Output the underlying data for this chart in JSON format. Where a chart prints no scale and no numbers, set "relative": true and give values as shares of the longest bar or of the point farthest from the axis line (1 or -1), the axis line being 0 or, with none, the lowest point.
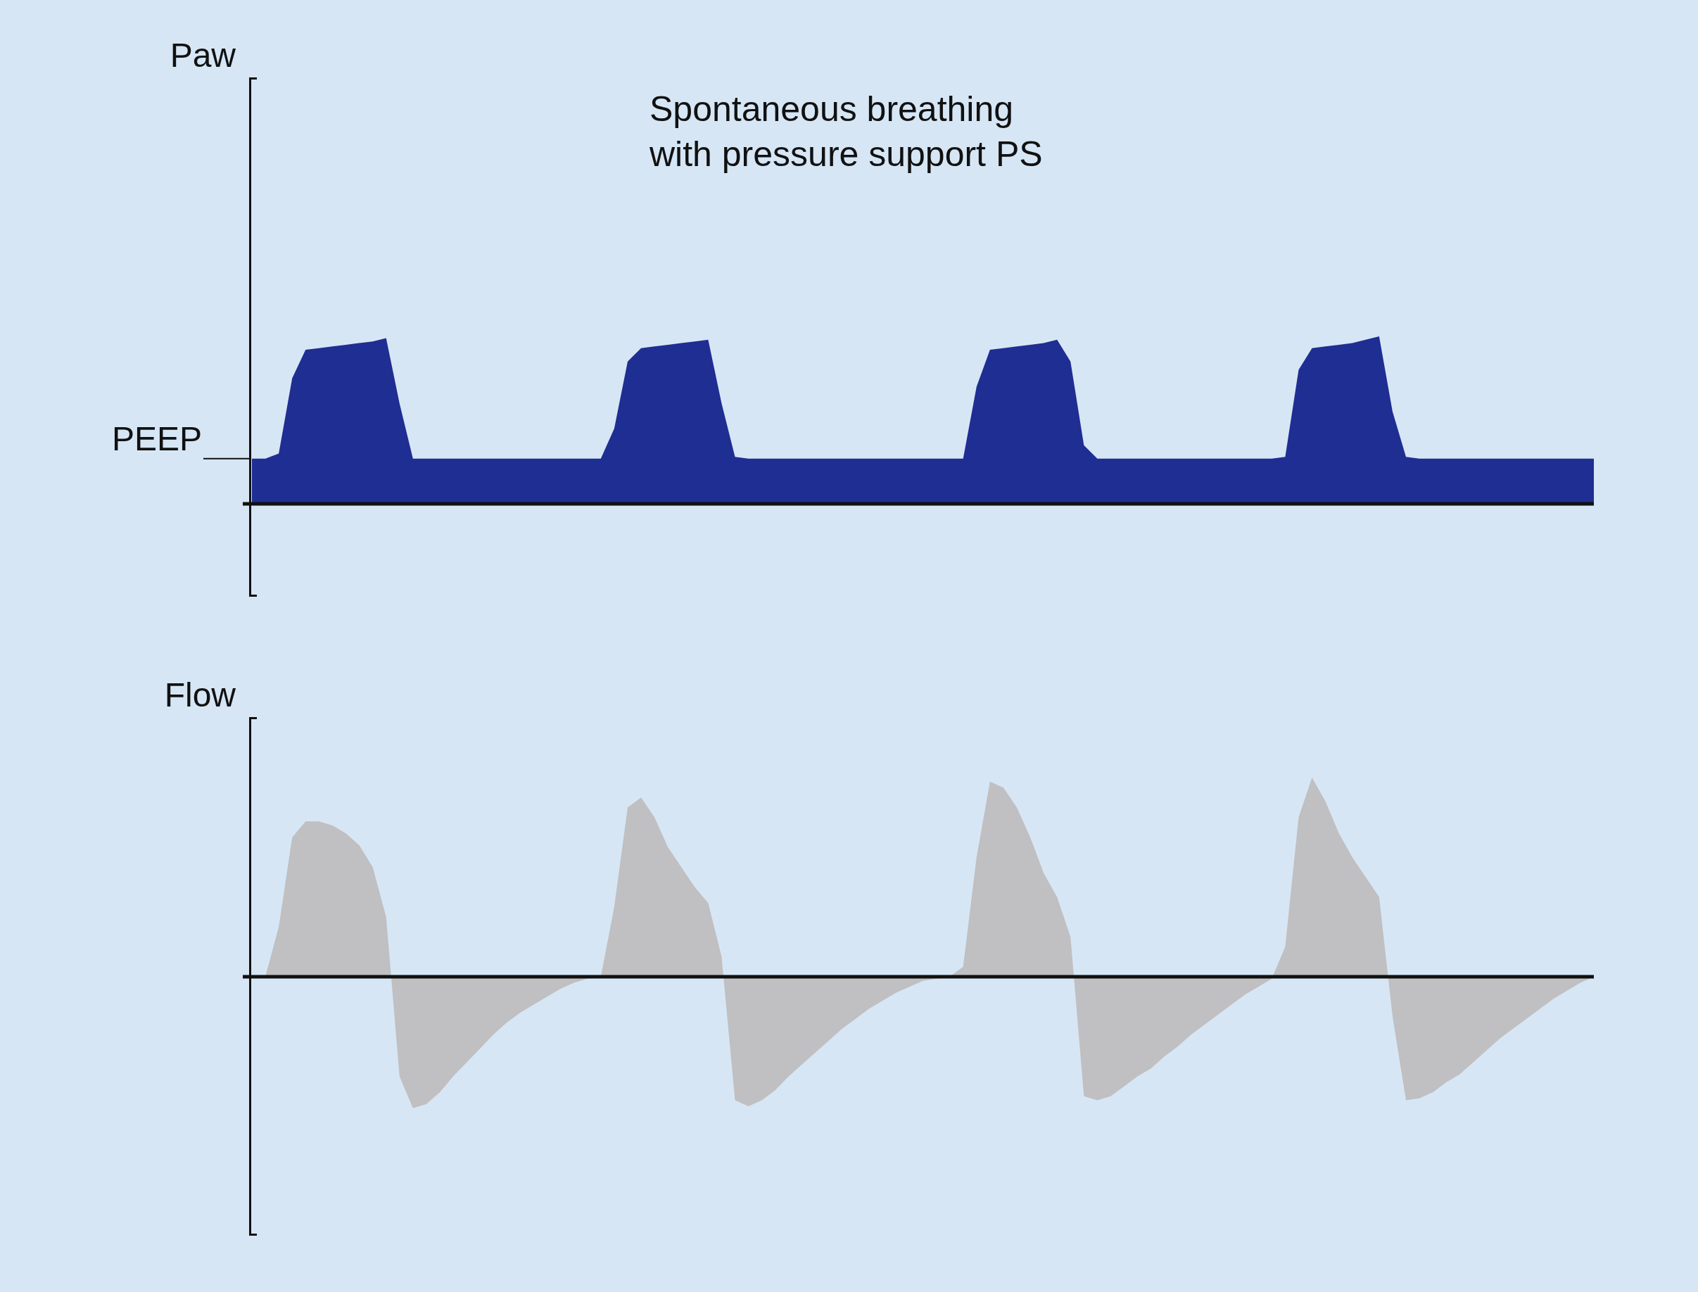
{
  "chart_data": [
    {
      "type": "area",
      "relative": true,
      "title": "Spontaneous breathing\nwith pressure support PS",
      "ylabel": "Paw",
      "ref_lines": [
        {
          "axis": "y",
          "value": 0.27,
          "label": "PEEP"
        }
      ],
      "categories": [
        null,
        null,
        null,
        null,
        null,
        null,
        null,
        null,
        null,
        null,
        null,
        null,
        null,
        null,
        null,
        null,
        null,
        null,
        null,
        null,
        null,
        null,
        null,
        null,
        null,
        null,
        null,
        null,
        null,
        null,
        null,
        null,
        null,
        null,
        null,
        null,
        null,
        null,
        null,
        null,
        null,
        null,
        null,
        null,
        null,
        null,
        null,
        null,
        null,
        null,
        null,
        null,
        null,
        null,
        null,
        null,
        null,
        null,
        null,
        null,
        null,
        null,
        null,
        null,
        null,
        null,
        null,
        null,
        null,
        null,
        null,
        null,
        null,
        null,
        null,
        null,
        null,
        null,
        null,
        null,
        null,
        null,
        null,
        null,
        null,
        null,
        null,
        null,
        null,
        null,
        null,
        null,
        null,
        null,
        null,
        null,
        null,
        null,
        null,
        null,
        null
      ],
      "series": [
        {
          "color": "#1f2e92",
          "values": [
            0.27,
            0.27,
            0.3,
            0.75,
            0.92,
            0.93,
            0.94,
            0.95,
            0.96,
            0.97,
            0.99,
            0.6,
            0.27,
            0.27,
            0.27,
            0.27,
            0.27,
            0.27,
            0.27,
            0.27,
            0.27,
            0.27,
            0.27,
            0.27,
            0.27,
            0.27,
            0.27,
            0.45,
            0.85,
            0.93,
            0.94,
            0.95,
            0.96,
            0.97,
            0.98,
            0.6,
            0.28,
            0.27,
            0.27,
            0.27,
            0.27,
            0.27,
            0.27,
            0.27,
            0.27,
            0.27,
            0.27,
            0.27,
            0.27,
            0.27,
            0.27,
            0.27,
            0.27,
            0.27,
            0.7,
            0.92,
            0.93,
            0.94,
            0.95,
            0.96,
            0.98,
            0.85,
            0.35,
            0.27,
            0.27,
            0.27,
            0.27,
            0.27,
            0.27,
            0.27,
            0.27,
            0.27,
            0.27,
            0.27,
            0.27,
            0.27,
            0.27,
            0.28,
            0.8,
            0.93,
            0.94,
            0.95,
            0.96,
            0.98,
            1.0,
            0.55,
            0.28,
            0.27,
            0.27,
            0.27,
            0.27,
            0.27,
            0.27,
            0.27,
            0.27,
            0.27,
            0.27,
            0.27,
            0.27,
            0.27,
            0.27
          ]
        }
      ]
    },
    {
      "type": "area",
      "relative": true,
      "ylabel": "Flow",
      "categories": [
        null,
        null,
        null,
        null,
        null,
        null,
        null,
        null,
        null,
        null,
        null,
        null,
        null,
        null,
        null,
        null,
        null,
        null,
        null,
        null,
        null,
        null,
        null,
        null,
        null,
        null,
        null,
        null,
        null,
        null,
        null,
        null,
        null,
        null,
        null,
        null,
        null,
        null,
        null,
        null,
        null,
        null,
        null,
        null,
        null,
        null,
        null,
        null,
        null,
        null,
        null,
        null,
        null,
        null,
        null,
        null,
        null,
        null,
        null,
        null,
        null,
        null,
        null,
        null,
        null,
        null,
        null,
        null,
        null,
        null,
        null,
        null,
        null,
        null,
        null,
        null,
        null,
        null,
        null,
        null,
        null,
        null,
        null,
        null,
        null,
        null,
        null,
        null,
        null,
        null,
        null,
        null,
        null,
        null,
        null,
        null,
        null,
        null,
        null,
        null,
        null
      ],
      "series": [
        {
          "color": "#c0bfc1",
          "values": [
            0,
            0,
            0.25,
            0.7,
            0.78,
            0.78,
            0.76,
            0.72,
            0.66,
            0.55,
            0.3,
            -0.5,
            -0.66,
            -0.64,
            -0.58,
            -0.5,
            -0.43,
            -0.36,
            -0.29,
            -0.23,
            -0.18,
            -0.14,
            -0.1,
            -0.06,
            -0.03,
            -0.01,
            0,
            0.35,
            0.85,
            0.9,
            0.8,
            0.65,
            0.55,
            0.45,
            0.37,
            0.1,
            -0.62,
            -0.65,
            -0.62,
            -0.57,
            -0.5,
            -0.44,
            -0.38,
            -0.32,
            -0.26,
            -0.21,
            -0.16,
            -0.12,
            -0.08,
            -0.05,
            -0.02,
            -0.01,
            0,
            0.05,
            0.6,
            0.98,
            0.95,
            0.85,
            0.7,
            0.52,
            0.4,
            0.2,
            -0.6,
            -0.62,
            -0.6,
            -0.55,
            -0.5,
            -0.46,
            -0.4,
            -0.35,
            -0.29,
            -0.24,
            -0.19,
            -0.14,
            -0.09,
            -0.05,
            -0.01,
            0.15,
            0.8,
            1,
            0.88,
            0.72,
            0.6,
            0.5,
            0.4,
            -0.2,
            -0.62,
            -0.61,
            -0.58,
            -0.53,
            -0.49,
            -0.43,
            -0.37,
            -0.31,
            -0.26,
            -0.21,
            -0.16,
            -0.11,
            -0.07,
            -0.03,
            0
          ]
        }
      ]
    }
  ]
}
